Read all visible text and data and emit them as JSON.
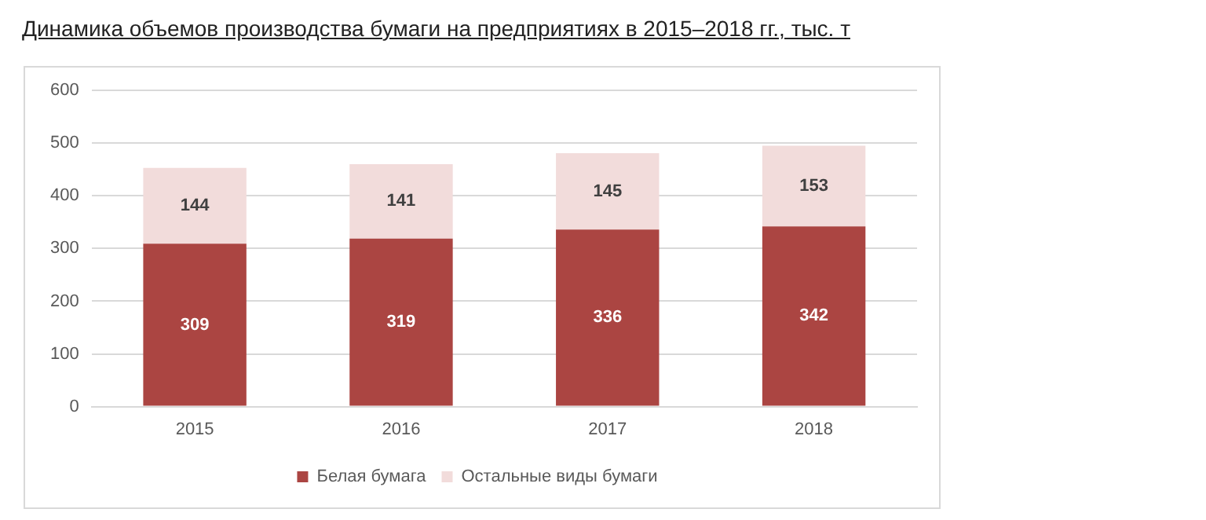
{
  "chart_data": {
    "type": "bar",
    "title": "Динамика объемов производства бумаги на предприятиях в 2015–2018 гг., тыс. т",
    "categories": [
      "2015",
      "2016",
      "2017",
      "2018"
    ],
    "series": [
      {
        "name": "Белая бумага",
        "color": "#ab4542",
        "values": [
          309,
          319,
          336,
          342
        ]
      },
      {
        "name": "Остальные виды бумаги",
        "color": "#f2dcdb",
        "values": [
          144,
          141,
          145,
          153
        ]
      }
    ],
    "stacked": true,
    "ylim": [
      0,
      600
    ],
    "yticks": [
      0,
      100,
      200,
      300,
      400,
      500,
      600
    ],
    "grid": "y",
    "legend": "bottom",
    "data_labels": true
  }
}
